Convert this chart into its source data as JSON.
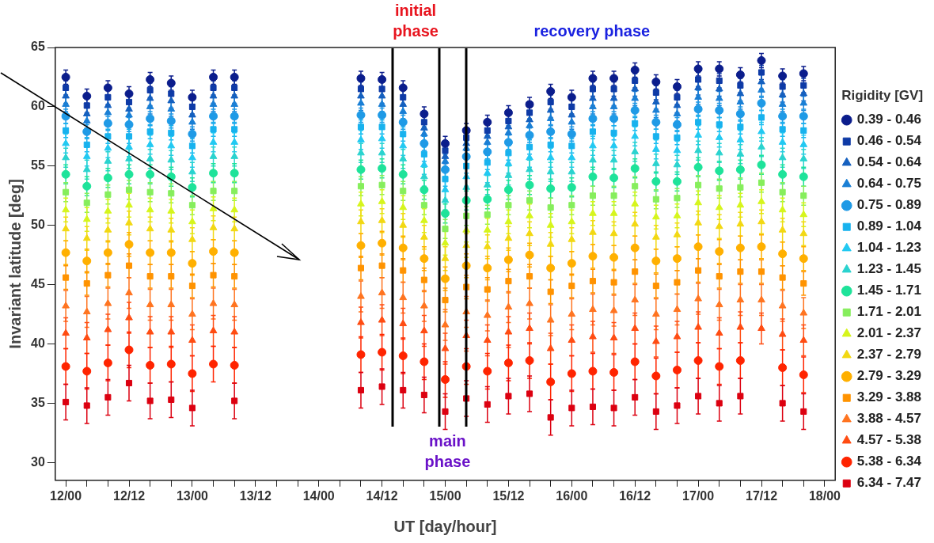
{
  "chart_data": {
    "type": "scatter",
    "xlabel": "UT [day/hour]",
    "ylabel": "Invariant latitude [deg]",
    "legend": "right",
    "legend_title": "Rigidity [GV]",
    "categories": [
      "12/00",
      null,
      null,
      "12/12",
      null,
      null,
      "13/00",
      null,
      null,
      "13/12",
      null,
      null,
      "14/00",
      null,
      null,
      "14/12",
      null,
      null,
      "15/00",
      null,
      null,
      "15/12",
      null,
      null,
      "16/00",
      null,
      null,
      "16/12",
      null,
      null,
      "17/00",
      null,
      null,
      "17/12",
      null,
      null,
      "18/00"
    ],
    "ylim": [
      28.5,
      65
    ],
    "yticks": [
      30,
      35,
      40,
      45,
      50,
      55,
      60,
      65
    ],
    "annotations": [
      "initial phase",
      "main phase",
      "recovery phase"
    ],
    "series": [
      {
        "name": "0.39 - 0.46",
        "color": "#0b1d8c",
        "marker": "circle",
        "values": [
          62.5,
          60.9,
          61.6,
          61.1,
          62.3,
          62.0,
          60.8,
          62.5,
          62.5,
          null,
          null,
          null,
          null,
          null,
          62.4,
          62.3,
          61.6,
          59.4,
          56.9,
          58.0,
          58.7,
          59.5,
          60.2,
          61.3,
          60.8,
          62.4,
          62.4,
          63.1,
          62.1,
          61.7,
          63.2,
          63.2,
          62.7,
          63.9,
          62.6,
          62.8,
          null
        ],
        "errors": [
          0.6,
          0.6,
          0.6,
          0.6,
          0.6,
          0.6,
          0.6,
          0.6,
          0.6,
          null,
          null,
          null,
          null,
          null,
          0.6,
          0.6,
          0.6,
          0.6,
          0.6,
          0.6,
          0.6,
          0.6,
          0.6,
          0.6,
          0.6,
          0.6,
          0.6,
          0.6,
          0.6,
          0.6,
          0.6,
          0.6,
          0.6,
          0.6,
          0.6,
          0.6,
          null
        ]
      },
      {
        "name": "0.46 - 0.54",
        "color": "#0e3aa6",
        "marker": "square",
        "values": [
          61.6,
          60.1,
          60.8,
          60.4,
          61.4,
          61.1,
          60.0,
          61.6,
          61.6,
          null,
          null,
          null,
          null,
          null,
          61.5,
          61.5,
          60.8,
          58.7,
          56.3,
          57.4,
          58.0,
          58.8,
          59.5,
          60.4,
          60.0,
          61.5,
          61.5,
          62.2,
          61.2,
          60.8,
          62.3,
          62.2,
          61.8,
          62.9,
          61.7,
          61.8,
          null
        ],
        "errors": [
          0.6,
          0.6,
          0.6,
          0.6,
          0.6,
          0.6,
          0.6,
          0.6,
          0.6,
          null,
          null,
          null,
          null,
          null,
          0.6,
          0.6,
          0.6,
          0.6,
          0.6,
          0.6,
          0.6,
          0.6,
          0.6,
          0.6,
          0.6,
          0.6,
          0.6,
          0.6,
          0.6,
          0.6,
          0.6,
          0.6,
          0.6,
          0.6,
          0.6,
          0.6,
          null
        ]
      },
      {
        "name": "0.54 - 0.64",
        "color": "#1560bf",
        "marker": "triangle",
        "values": [
          60.9,
          59.4,
          60.1,
          59.8,
          60.7,
          60.5,
          59.3,
          60.9,
          60.9,
          null,
          null,
          null,
          null,
          null,
          60.9,
          60.9,
          60.2,
          58.2,
          55.8,
          56.9,
          57.5,
          58.3,
          58.9,
          59.7,
          59.3,
          60.7,
          60.7,
          61.5,
          60.4,
          60.1,
          61.6,
          61.5,
          61.1,
          62.1,
          61.0,
          61.1,
          null
        ],
        "errors": [
          0.6,
          0.6,
          0.6,
          0.6,
          0.6,
          0.6,
          0.6,
          0.6,
          0.6,
          null,
          null,
          null,
          null,
          null,
          0.6,
          0.6,
          0.6,
          0.6,
          0.6,
          0.6,
          0.6,
          0.6,
          0.6,
          0.6,
          0.6,
          0.6,
          0.6,
          0.6,
          0.6,
          0.6,
          0.6,
          0.6,
          0.6,
          0.6,
          0.6,
          0.6,
          null
        ]
      },
      {
        "name": "0.64 - 0.75",
        "color": "#1a7fd5",
        "marker": "triangle",
        "values": [
          60.2,
          58.8,
          59.5,
          59.3,
          60.0,
          59.8,
          58.7,
          60.2,
          60.2,
          null,
          null,
          null,
          null,
          null,
          60.3,
          60.2,
          59.6,
          57.7,
          55.4,
          56.5,
          57.0,
          57.8,
          58.4,
          59.0,
          58.7,
          60.0,
          60.0,
          60.7,
          59.7,
          59.4,
          60.8,
          60.7,
          60.4,
          61.4,
          60.2,
          60.3,
          null
        ],
        "errors": [
          0.6,
          0.6,
          0.6,
          0.6,
          0.6,
          0.6,
          0.6,
          0.6,
          0.6,
          null,
          null,
          null,
          null,
          null,
          0.6,
          0.6,
          0.6,
          0.6,
          0.6,
          0.6,
          0.6,
          0.6,
          0.6,
          0.6,
          0.6,
          0.6,
          0.6,
          0.6,
          0.6,
          0.6,
          0.6,
          0.6,
          0.6,
          0.6,
          0.6,
          0.6,
          null
        ]
      },
      {
        "name": "0.75 - 0.89",
        "color": "#1f9ae6",
        "marker": "circle",
        "values": [
          59.2,
          57.9,
          58.6,
          58.5,
          59.0,
          58.8,
          57.7,
          59.2,
          59.2,
          null,
          null,
          null,
          null,
          null,
          59.3,
          59.3,
          58.7,
          56.9,
          54.7,
          55.8,
          56.2,
          57.0,
          57.6,
          57.9,
          57.7,
          59.0,
          59.0,
          59.7,
          58.7,
          58.5,
          59.8,
          59.7,
          59.4,
          60.3,
          59.2,
          59.2,
          null
        ],
        "errors": [
          0.6,
          0.6,
          0.6,
          0.6,
          0.6,
          0.6,
          0.6,
          0.6,
          0.6,
          null,
          null,
          null,
          null,
          null,
          0.6,
          0.6,
          0.6,
          0.6,
          0.6,
          0.6,
          0.6,
          0.6,
          0.6,
          0.6,
          0.6,
          0.6,
          0.6,
          0.6,
          0.6,
          0.6,
          0.6,
          0.6,
          0.6,
          0.6,
          0.6,
          0.6,
          null
        ]
      },
      {
        "name": "0.89 - 1.04",
        "color": "#18b2ee",
        "marker": "square",
        "values": [
          58.0,
          56.8,
          57.5,
          57.5,
          57.9,
          57.8,
          56.7,
          58.1,
          58.1,
          null,
          null,
          null,
          null,
          null,
          58.3,
          58.3,
          57.7,
          56.0,
          53.9,
          55.0,
          55.3,
          56.1,
          56.6,
          56.8,
          56.7,
          57.9,
          57.8,
          58.6,
          57.5,
          57.4,
          58.7,
          58.5,
          58.3,
          59.1,
          58.1,
          58.0,
          null
        ],
        "errors": [
          0.6,
          0.6,
          0.6,
          0.6,
          0.6,
          0.6,
          0.6,
          0.6,
          0.6,
          null,
          null,
          null,
          null,
          null,
          0.6,
          0.6,
          0.6,
          0.6,
          0.6,
          0.6,
          0.6,
          0.6,
          0.6,
          0.6,
          0.6,
          0.6,
          0.6,
          0.6,
          0.6,
          0.6,
          0.6,
          0.6,
          0.6,
          0.6,
          0.6,
          0.6,
          null
        ]
      },
      {
        "name": "1.04 - 1.23",
        "color": "#22c9f2",
        "marker": "triangle",
        "values": [
          56.9,
          55.8,
          56.5,
          56.6,
          56.8,
          56.7,
          55.7,
          57.0,
          57.0,
          null,
          null,
          null,
          null,
          null,
          57.2,
          57.3,
          56.7,
          55.1,
          53.0,
          54.1,
          54.4,
          55.2,
          55.7,
          55.7,
          55.7,
          56.7,
          56.7,
          57.5,
          56.4,
          56.3,
          57.6,
          57.4,
          57.2,
          57.9,
          57.0,
          56.8,
          null
        ],
        "errors": [
          0.8,
          0.8,
          0.8,
          0.8,
          0.8,
          0.8,
          0.8,
          0.8,
          0.8,
          null,
          null,
          null,
          null,
          null,
          0.8,
          0.8,
          0.8,
          0.8,
          0.8,
          0.8,
          0.8,
          0.8,
          0.8,
          0.8,
          0.8,
          0.8,
          0.8,
          0.8,
          0.8,
          0.8,
          0.8,
          0.8,
          0.8,
          0.8,
          0.8,
          0.8,
          null
        ]
      },
      {
        "name": "1.23 - 1.45",
        "color": "#2ad3cf",
        "marker": "triangle",
        "values": [
          55.7,
          54.7,
          55.4,
          55.6,
          55.6,
          55.5,
          54.5,
          55.8,
          55.8,
          null,
          null,
          null,
          null,
          null,
          56.1,
          56.1,
          55.6,
          54.1,
          52.1,
          53.2,
          53.4,
          54.2,
          54.7,
          54.5,
          54.5,
          55.5,
          55.5,
          56.2,
          55.2,
          55.1,
          56.3,
          56.1,
          56.0,
          56.6,
          55.7,
          55.6,
          null
        ],
        "errors": [
          0.8,
          0.8,
          0.8,
          0.8,
          0.8,
          0.8,
          0.8,
          0.8,
          0.8,
          null,
          null,
          null,
          null,
          null,
          0.8,
          0.8,
          0.8,
          0.8,
          0.8,
          0.8,
          0.8,
          0.8,
          0.8,
          0.8,
          0.8,
          0.8,
          0.8,
          0.8,
          0.8,
          0.8,
          0.8,
          0.8,
          0.8,
          0.8,
          0.8,
          0.8,
          null
        ]
      },
      {
        "name": "1.45 - 1.71",
        "color": "#1ee39a",
        "marker": "circle",
        "values": [
          54.3,
          53.3,
          54.0,
          54.3,
          54.3,
          54.1,
          53.2,
          54.4,
          54.4,
          null,
          null,
          null,
          null,
          null,
          54.7,
          54.8,
          54.3,
          53.0,
          51.0,
          52.1,
          52.2,
          53.0,
          53.4,
          53.1,
          53.2,
          54.1,
          54.0,
          54.8,
          53.7,
          53.7,
          54.9,
          54.6,
          54.7,
          55.1,
          54.3,
          54.1,
          null
        ],
        "errors": [
          0.8,
          0.8,
          0.8,
          0.8,
          0.8,
          0.8,
          0.8,
          0.8,
          0.8,
          null,
          null,
          null,
          null,
          null,
          0.8,
          0.8,
          0.8,
          0.8,
          0.8,
          0.8,
          0.8,
          0.8,
          0.8,
          0.8,
          0.8,
          0.8,
          0.8,
          0.8,
          0.8,
          0.8,
          0.8,
          0.8,
          0.8,
          0.8,
          0.8,
          0.8,
          null
        ]
      },
      {
        "name": "1.71 - 2.01",
        "color": "#86ee5c",
        "marker": "square",
        "values": [
          52.8,
          51.9,
          52.6,
          53.0,
          52.8,
          52.7,
          51.7,
          52.9,
          52.9,
          null,
          null,
          null,
          null,
          null,
          53.3,
          53.4,
          52.9,
          51.7,
          49.7,
          50.8,
          50.9,
          51.7,
          52.1,
          51.5,
          51.7,
          52.5,
          52.5,
          53.3,
          52.2,
          52.3,
          53.4,
          53.1,
          53.2,
          53.6,
          52.8,
          52.5,
          null
        ],
        "errors": [
          0.8,
          0.8,
          0.8,
          0.8,
          0.8,
          0.8,
          0.8,
          0.8,
          0.8,
          null,
          null,
          null,
          null,
          null,
          0.8,
          0.8,
          0.8,
          0.8,
          0.8,
          0.8,
          0.8,
          0.8,
          0.8,
          0.8,
          0.8,
          0.8,
          0.8,
          0.8,
          0.8,
          0.8,
          0.8,
          0.8,
          0.8,
          0.8,
          0.8,
          0.8,
          null
        ]
      },
      {
        "name": "2.01 - 2.37",
        "color": "#d6f51c",
        "marker": "triangle",
        "values": [
          51.3,
          50.5,
          51.2,
          51.7,
          51.3,
          51.2,
          50.3,
          51.4,
          51.3,
          null,
          null,
          null,
          null,
          null,
          51.8,
          52.0,
          51.5,
          50.4,
          48.5,
          49.6,
          49.6,
          50.3,
          50.8,
          50.0,
          50.3,
          51.0,
          51.0,
          51.8,
          50.7,
          50.8,
          51.9,
          51.5,
          51.7,
          52.0,
          51.3,
          50.9,
          null
        ],
        "errors": [
          1,
          1,
          1,
          1,
          1,
          1,
          1,
          1,
          1,
          null,
          null,
          null,
          null,
          null,
          1,
          1,
          1,
          1,
          1,
          1,
          1,
          1,
          1,
          1,
          1,
          1,
          1,
          1,
          1,
          1,
          1,
          1,
          1,
          1,
          1,
          1,
          null
        ]
      },
      {
        "name": "2.37 - 2.79",
        "color": "#f2d812",
        "marker": "triangle",
        "values": [
          49.7,
          48.9,
          49.6,
          50.2,
          49.7,
          49.6,
          48.8,
          49.8,
          49.7,
          null,
          null,
          null,
          null,
          null,
          50.3,
          50.4,
          50.0,
          49.0,
          47.2,
          48.3,
          48.2,
          48.9,
          49.3,
          48.4,
          48.8,
          49.4,
          49.3,
          50.1,
          49.0,
          49.2,
          50.2,
          49.9,
          50.1,
          50.3,
          49.6,
          49.3,
          null
        ],
        "errors": [
          1,
          1,
          1,
          1,
          1,
          1,
          1,
          1,
          1,
          null,
          null,
          null,
          null,
          null,
          1,
          1,
          1,
          1,
          1,
          1,
          1,
          1,
          1,
          1,
          1,
          1,
          1,
          1,
          1,
          1,
          1,
          1,
          1,
          1,
          1,
          1,
          null
        ]
      },
      {
        "name": "2.79 - 3.29",
        "color": "#ffb000",
        "marker": "circle",
        "values": [
          47.7,
          47.0,
          47.7,
          48.4,
          47.7,
          47.7,
          46.8,
          47.8,
          47.7,
          null,
          null,
          null,
          null,
          null,
          48.3,
          48.5,
          48.1,
          47.2,
          45.5,
          46.6,
          46.4,
          47.1,
          47.5,
          46.4,
          46.8,
          47.4,
          47.3,
          48.1,
          47.0,
          47.2,
          48.2,
          47.8,
          48.1,
          48.2,
          47.6,
          47.2,
          null
        ],
        "errors": [
          1,
          1,
          1,
          1,
          1,
          1,
          1,
          1,
          1,
          null,
          null,
          null,
          null,
          null,
          1,
          1,
          1,
          1,
          1,
          1,
          1,
          1,
          1,
          1,
          1,
          1,
          1,
          1,
          1,
          1,
          1,
          1,
          1,
          1,
          1,
          1,
          null
        ]
      },
      {
        "name": "3.29 - 3.88",
        "color": "#ff9300",
        "marker": "square",
        "values": [
          45.6,
          45.1,
          45.8,
          46.6,
          45.7,
          45.7,
          44.9,
          45.8,
          45.7,
          null,
          null,
          null,
          null,
          null,
          46.4,
          46.6,
          46.2,
          45.4,
          43.7,
          44.8,
          44.6,
          45.3,
          45.7,
          44.4,
          44.9,
          45.3,
          45.2,
          46.1,
          44.9,
          45.2,
          46.2,
          45.7,
          46.1,
          46.1,
          45.6,
          45.1,
          null
        ],
        "errors": [
          1,
          1,
          1,
          1,
          1,
          1,
          1,
          1,
          1,
          null,
          null,
          null,
          null,
          null,
          1,
          1,
          1,
          1,
          1,
          1,
          1,
          1,
          1,
          1,
          1,
          1,
          1,
          1,
          1,
          1,
          1,
          1,
          1,
          1,
          1,
          1,
          null
        ]
      },
      {
        "name": "3.88 - 4.57",
        "color": "#ff7420",
        "marker": "triangle",
        "values": [
          43.2,
          42.7,
          43.4,
          44.3,
          43.3,
          43.3,
          42.5,
          43.4,
          43.3,
          null,
          null,
          null,
          null,
          null,
          44.0,
          44.3,
          43.9,
          43.2,
          41.6,
          42.7,
          42.4,
          43.1,
          43.4,
          42.0,
          42.5,
          42.9,
          42.8,
          43.7,
          42.5,
          42.9,
          43.8,
          43.3,
          43.7,
          43.7,
          43.2,
          42.6,
          null
        ],
        "errors": [
          1.3,
          1.3,
          1.3,
          1.3,
          1.3,
          1.3,
          1.3,
          1.3,
          1.3,
          null,
          null,
          null,
          null,
          null,
          1.3,
          1.3,
          1.3,
          1.3,
          1.3,
          1.3,
          1.3,
          1.3,
          1.3,
          1.3,
          1.3,
          1.3,
          1.3,
          1.3,
          1.3,
          1.3,
          1.3,
          1.3,
          1.3,
          1.3,
          1.3,
          1.3,
          null
        ]
      },
      {
        "name": "4.57 - 5.38",
        "color": "#ff4c12",
        "marker": "triangle",
        "values": [
          40.9,
          40.5,
          41.2,
          42.2,
          41.0,
          41.0,
          40.3,
          41.1,
          41.0,
          null,
          null,
          null,
          null,
          null,
          41.8,
          42.0,
          41.7,
          41.1,
          39.6,
          40.7,
          40.3,
          41.0,
          41.3,
          39.6,
          40.3,
          40.6,
          40.5,
          41.3,
          40.2,
          40.6,
          41.4,
          40.9,
          41.4,
          41.3,
          40.8,
          40.3,
          null
        ],
        "errors": [
          1.3,
          1.3,
          1.3,
          1.3,
          1.3,
          1.3,
          1.3,
          1.3,
          1.3,
          null,
          null,
          null,
          null,
          null,
          1.3,
          1.3,
          1.3,
          1.3,
          1.3,
          1.3,
          1.3,
          1.3,
          1.3,
          1.3,
          1.3,
          1.3,
          1.3,
          1.3,
          1.3,
          1.3,
          1.3,
          1.3,
          1.3,
          1.3,
          1.3,
          1.3,
          null
        ]
      },
      {
        "name": "5.38 - 6.34",
        "color": "#ff2400",
        "marker": "circle",
        "values": [
          38.1,
          37.7,
          38.4,
          39.5,
          38.2,
          38.3,
          37.5,
          38.3,
          38.2,
          null,
          null,
          null,
          null,
          null,
          39.1,
          39.3,
          39.0,
          38.5,
          37.0,
          38.1,
          37.7,
          38.4,
          38.6,
          36.8,
          37.5,
          37.7,
          37.6,
          38.5,
          37.3,
          37.8,
          38.6,
          38.1,
          38.6,
          null,
          38.0,
          37.4,
          null
        ],
        "errors": [
          1.5,
          1.5,
          1.5,
          1.5,
          1.5,
          1.5,
          1.5,
          1.5,
          1.5,
          null,
          null,
          null,
          null,
          null,
          1.5,
          1.5,
          1.5,
          1.5,
          1.5,
          1.5,
          1.5,
          1.5,
          1.5,
          1.5,
          1.5,
          1.5,
          1.5,
          1.5,
          1.5,
          1.5,
          1.5,
          1.5,
          1.5,
          null,
          1.5,
          1.5,
          null
        ]
      },
      {
        "name": "6.34 - 7.47",
        "color": "#dc0010",
        "marker": "square",
        "values": [
          35.1,
          34.8,
          35.5,
          36.7,
          35.2,
          35.3,
          34.6,
          null,
          35.2,
          null,
          null,
          null,
          null,
          null,
          36.1,
          36.4,
          36.1,
          35.7,
          34.3,
          35.4,
          34.9,
          35.6,
          35.8,
          33.8,
          34.6,
          34.7,
          34.6,
          35.5,
          34.3,
          34.8,
          35.6,
          35.0,
          35.6,
          null,
          35.0,
          34.3,
          null
        ],
        "errors": [
          1.5,
          1.5,
          1.5,
          1.5,
          1.5,
          1.5,
          1.5,
          null,
          1.5,
          null,
          null,
          null,
          null,
          null,
          1.5,
          1.5,
          1.5,
          1.5,
          1.5,
          1.5,
          1.5,
          1.5,
          1.5,
          1.5,
          1.5,
          1.5,
          1.5,
          1.5,
          1.5,
          1.5,
          1.5,
          1.5,
          1.5,
          null,
          1.5,
          1.5,
          null
        ]
      }
    ]
  }
}
